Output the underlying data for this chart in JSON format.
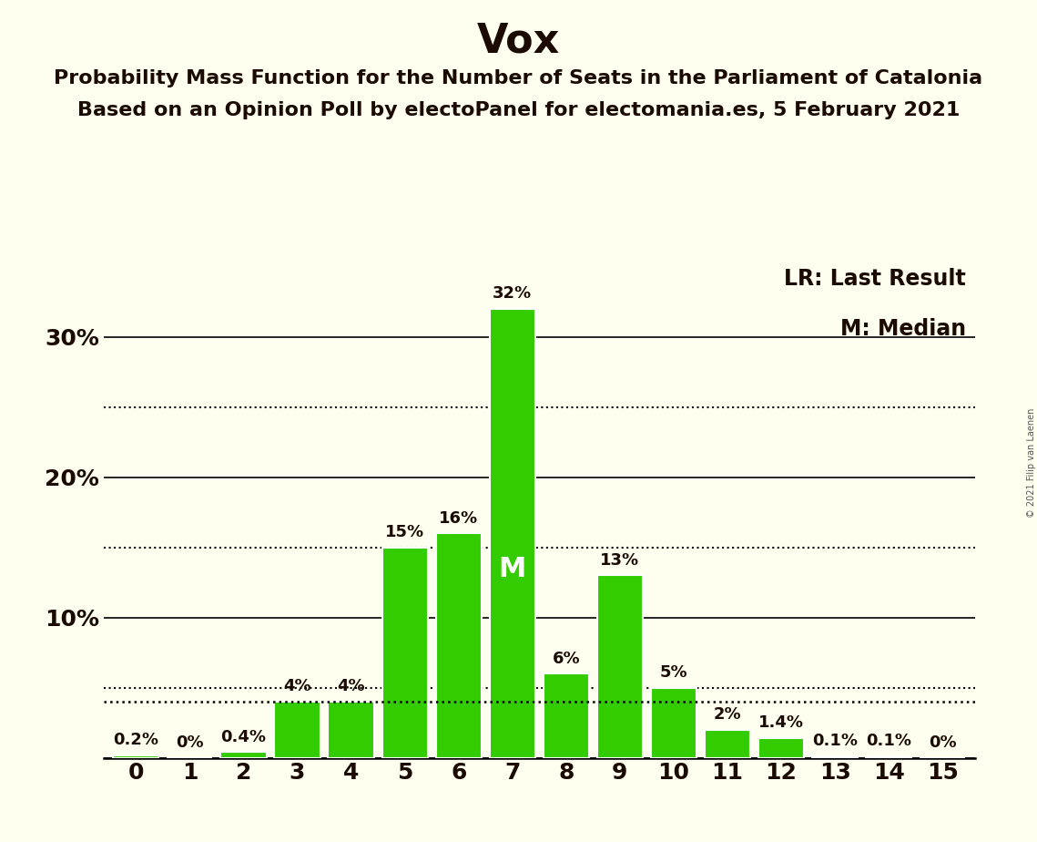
{
  "title": "Vox",
  "subtitle1": "Probability Mass Function for the Number of Seats in the Parliament of Catalonia",
  "subtitle2": "Based on an Opinion Poll by electoPanel for electomania.es, 5 February 2021",
  "copyright": "© 2021 Filip van Laenen",
  "categories": [
    0,
    1,
    2,
    3,
    4,
    5,
    6,
    7,
    8,
    9,
    10,
    11,
    12,
    13,
    14,
    15
  ],
  "values": [
    0.2,
    0.0,
    0.4,
    4.0,
    4.0,
    15.0,
    16.0,
    32.0,
    6.0,
    13.0,
    5.0,
    2.0,
    1.4,
    0.1,
    0.1,
    0.0
  ],
  "labels": [
    "0.2%",
    "0%",
    "0.4%",
    "4%",
    "4%",
    "15%",
    "16%",
    "32%",
    "6%",
    "13%",
    "5%",
    "2%",
    "1.4%",
    "0.1%",
    "0.1%",
    "0%"
  ],
  "bar_color": "#33CC00",
  "background_color": "#FFFFF0",
  "text_color": "#1a0a00",
  "bar_edge_color": "#FFFFFF",
  "legend_lr": "LR: Last Result",
  "legend_m": "M: Median",
  "lr_value": 4.0,
  "median_seat": 7,
  "median_label": "M",
  "solid_lines": [
    0,
    10,
    20,
    30
  ],
  "dotted_lines": [
    5.0,
    15.0,
    25.0
  ],
  "ylim": [
    0,
    36
  ],
  "title_fontsize": 32,
  "subtitle_fontsize": 16,
  "axis_fontsize": 18,
  "bar_label_fontsize": 13,
  "legend_fontsize": 17
}
